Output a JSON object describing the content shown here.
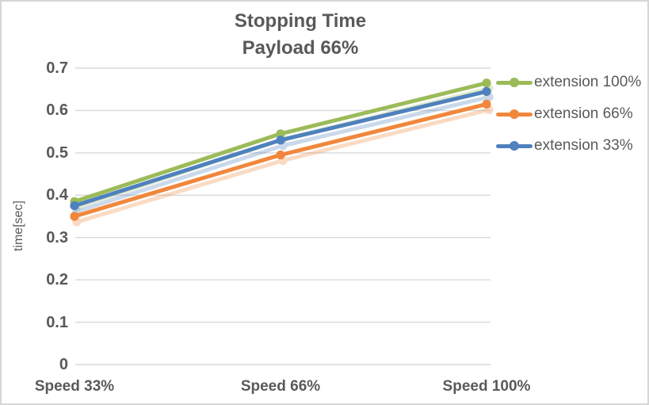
{
  "chart_data": {
    "type": "line",
    "title": "Stopping Time",
    "subtitle": "Payload 66%",
    "categories": [
      "Speed 33%",
      "Speed 66%",
      "Speed 100%"
    ],
    "series": [
      {
        "name": "extension 100%",
        "color": "#9BBB59",
        "values": [
          0.385,
          0.545,
          0.665
        ]
      },
      {
        "name": "extension 66%",
        "color": "#F0873C",
        "values": [
          0.35,
          0.495,
          0.615
        ]
      },
      {
        "name": "extension 33%",
        "color": "#4E81BD",
        "values": [
          0.375,
          0.53,
          0.645
        ]
      }
    ],
    "xlabel": "",
    "ylabel": "time[sec]",
    "ylim": [
      0,
      0.7
    ],
    "ytick_step": 0.1,
    "ytick_labels": [
      "0",
      "0.1",
      "0.2",
      "0.3",
      "0.4",
      "0.5",
      "0.6",
      "0.7"
    ],
    "grid": true,
    "legend_position": "right",
    "marker": "circle",
    "line_shadow": true,
    "text_color": "#595959",
    "gridline_color": "#D9D9D9",
    "border_color": "#D6D6D6"
  }
}
